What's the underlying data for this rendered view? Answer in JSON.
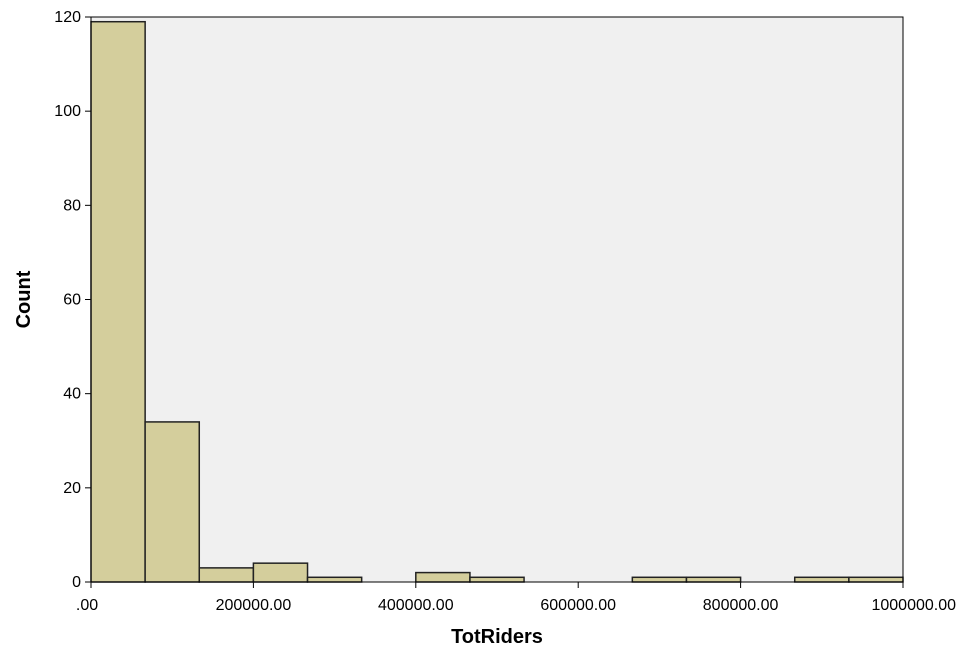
{
  "chart_data": {
    "type": "bar",
    "subtype": "histogram",
    "xlabel": "TotRiders",
    "ylabel": "Count",
    "xlim": [
      0,
      1000000
    ],
    "ylim": [
      0,
      120
    ],
    "xticks": [
      0,
      200000,
      400000,
      600000,
      800000,
      1000000
    ],
    "xtick_labels": [
      ".00",
      "200000.00",
      "400000.00",
      "600000.00",
      "800000.00",
      "1000000.00"
    ],
    "yticks": [
      0,
      20,
      40,
      60,
      80,
      100,
      120
    ],
    "ytick_labels": [
      "0",
      "20",
      "40",
      "60",
      "80",
      "100",
      "120"
    ],
    "bins": [
      {
        "start": 0,
        "end": 66667,
        "count": 119
      },
      {
        "start": 66667,
        "end": 133333,
        "count": 34
      },
      {
        "start": 133333,
        "end": 200000,
        "count": 3
      },
      {
        "start": 200000,
        "end": 266667,
        "count": 4
      },
      {
        "start": 266667,
        "end": 333333,
        "count": 1
      },
      {
        "start": 333333,
        "end": 400000,
        "count": 0
      },
      {
        "start": 400000,
        "end": 466667,
        "count": 2
      },
      {
        "start": 466667,
        "end": 533333,
        "count": 1
      },
      {
        "start": 533333,
        "end": 600000,
        "count": 0
      },
      {
        "start": 600000,
        "end": 666667,
        "count": 0
      },
      {
        "start": 666667,
        "end": 733333,
        "count": 1
      },
      {
        "start": 733333,
        "end": 800000,
        "count": 1
      },
      {
        "start": 800000,
        "end": 866667,
        "count": 0
      },
      {
        "start": 866667,
        "end": 933333,
        "count": 1
      },
      {
        "start": 933333,
        "end": 1000000,
        "count": 1
      }
    ],
    "grid": false,
    "colors": {
      "bar_fill": "#d4ce9c",
      "bar_stroke": "#222222",
      "plot_background": "#f0f0f0",
      "frame": "#000000"
    }
  }
}
